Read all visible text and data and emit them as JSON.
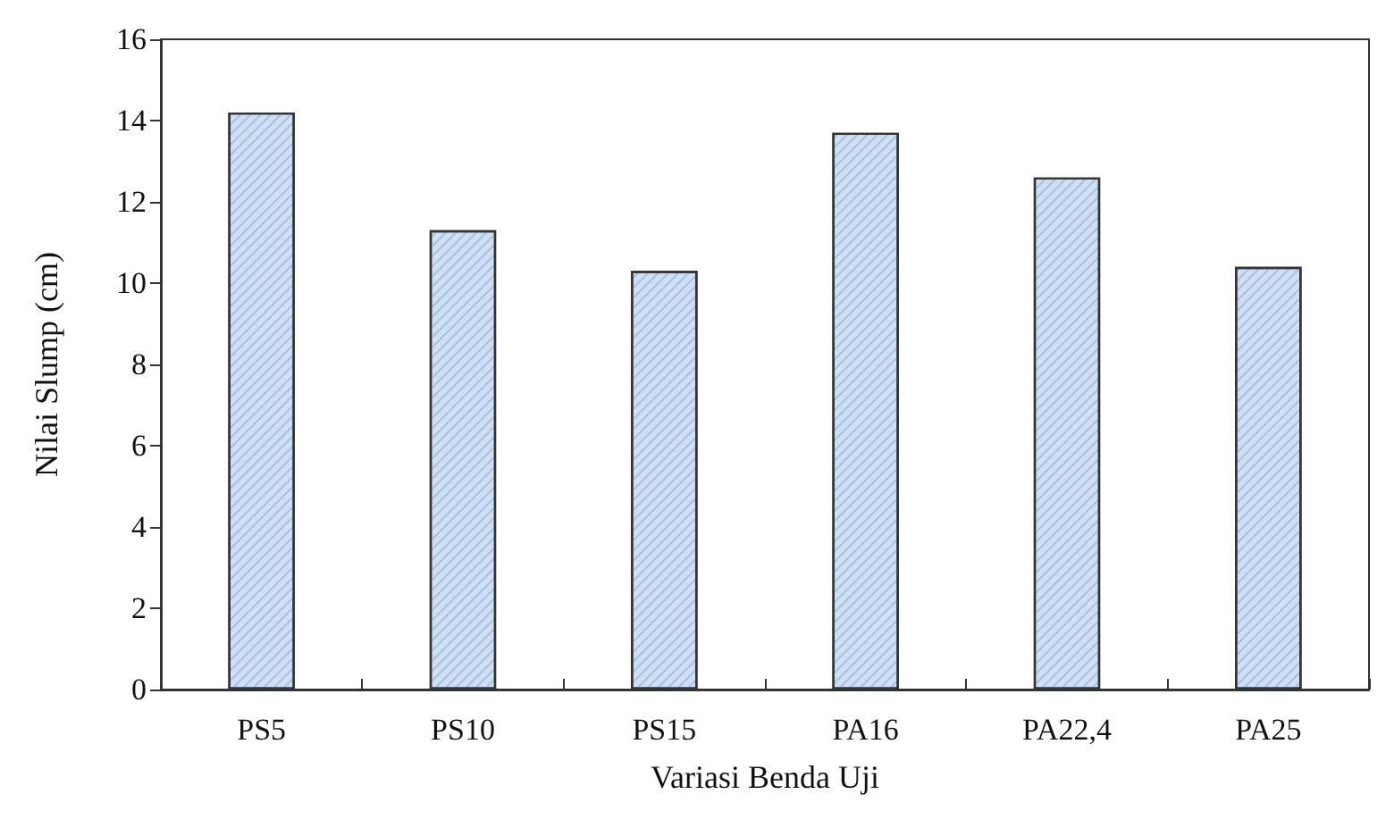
{
  "chart_data": {
    "type": "bar",
    "xlabel": "Variasi Benda Uji",
    "ylabel": "Nilai Slump (cm)",
    "categories": [
      "PS5",
      "PS10",
      "PS15",
      "PA16",
      "PA22,4",
      "PA25"
    ],
    "values": [
      14.2,
      11.3,
      10.3,
      13.7,
      12.6,
      10.4
    ],
    "color": "#cfe0f5",
    "ylim": [
      0,
      16
    ],
    "yticks": [
      0,
      2,
      4,
      6,
      8,
      10,
      12,
      14,
      16
    ],
    "grid": false
  }
}
